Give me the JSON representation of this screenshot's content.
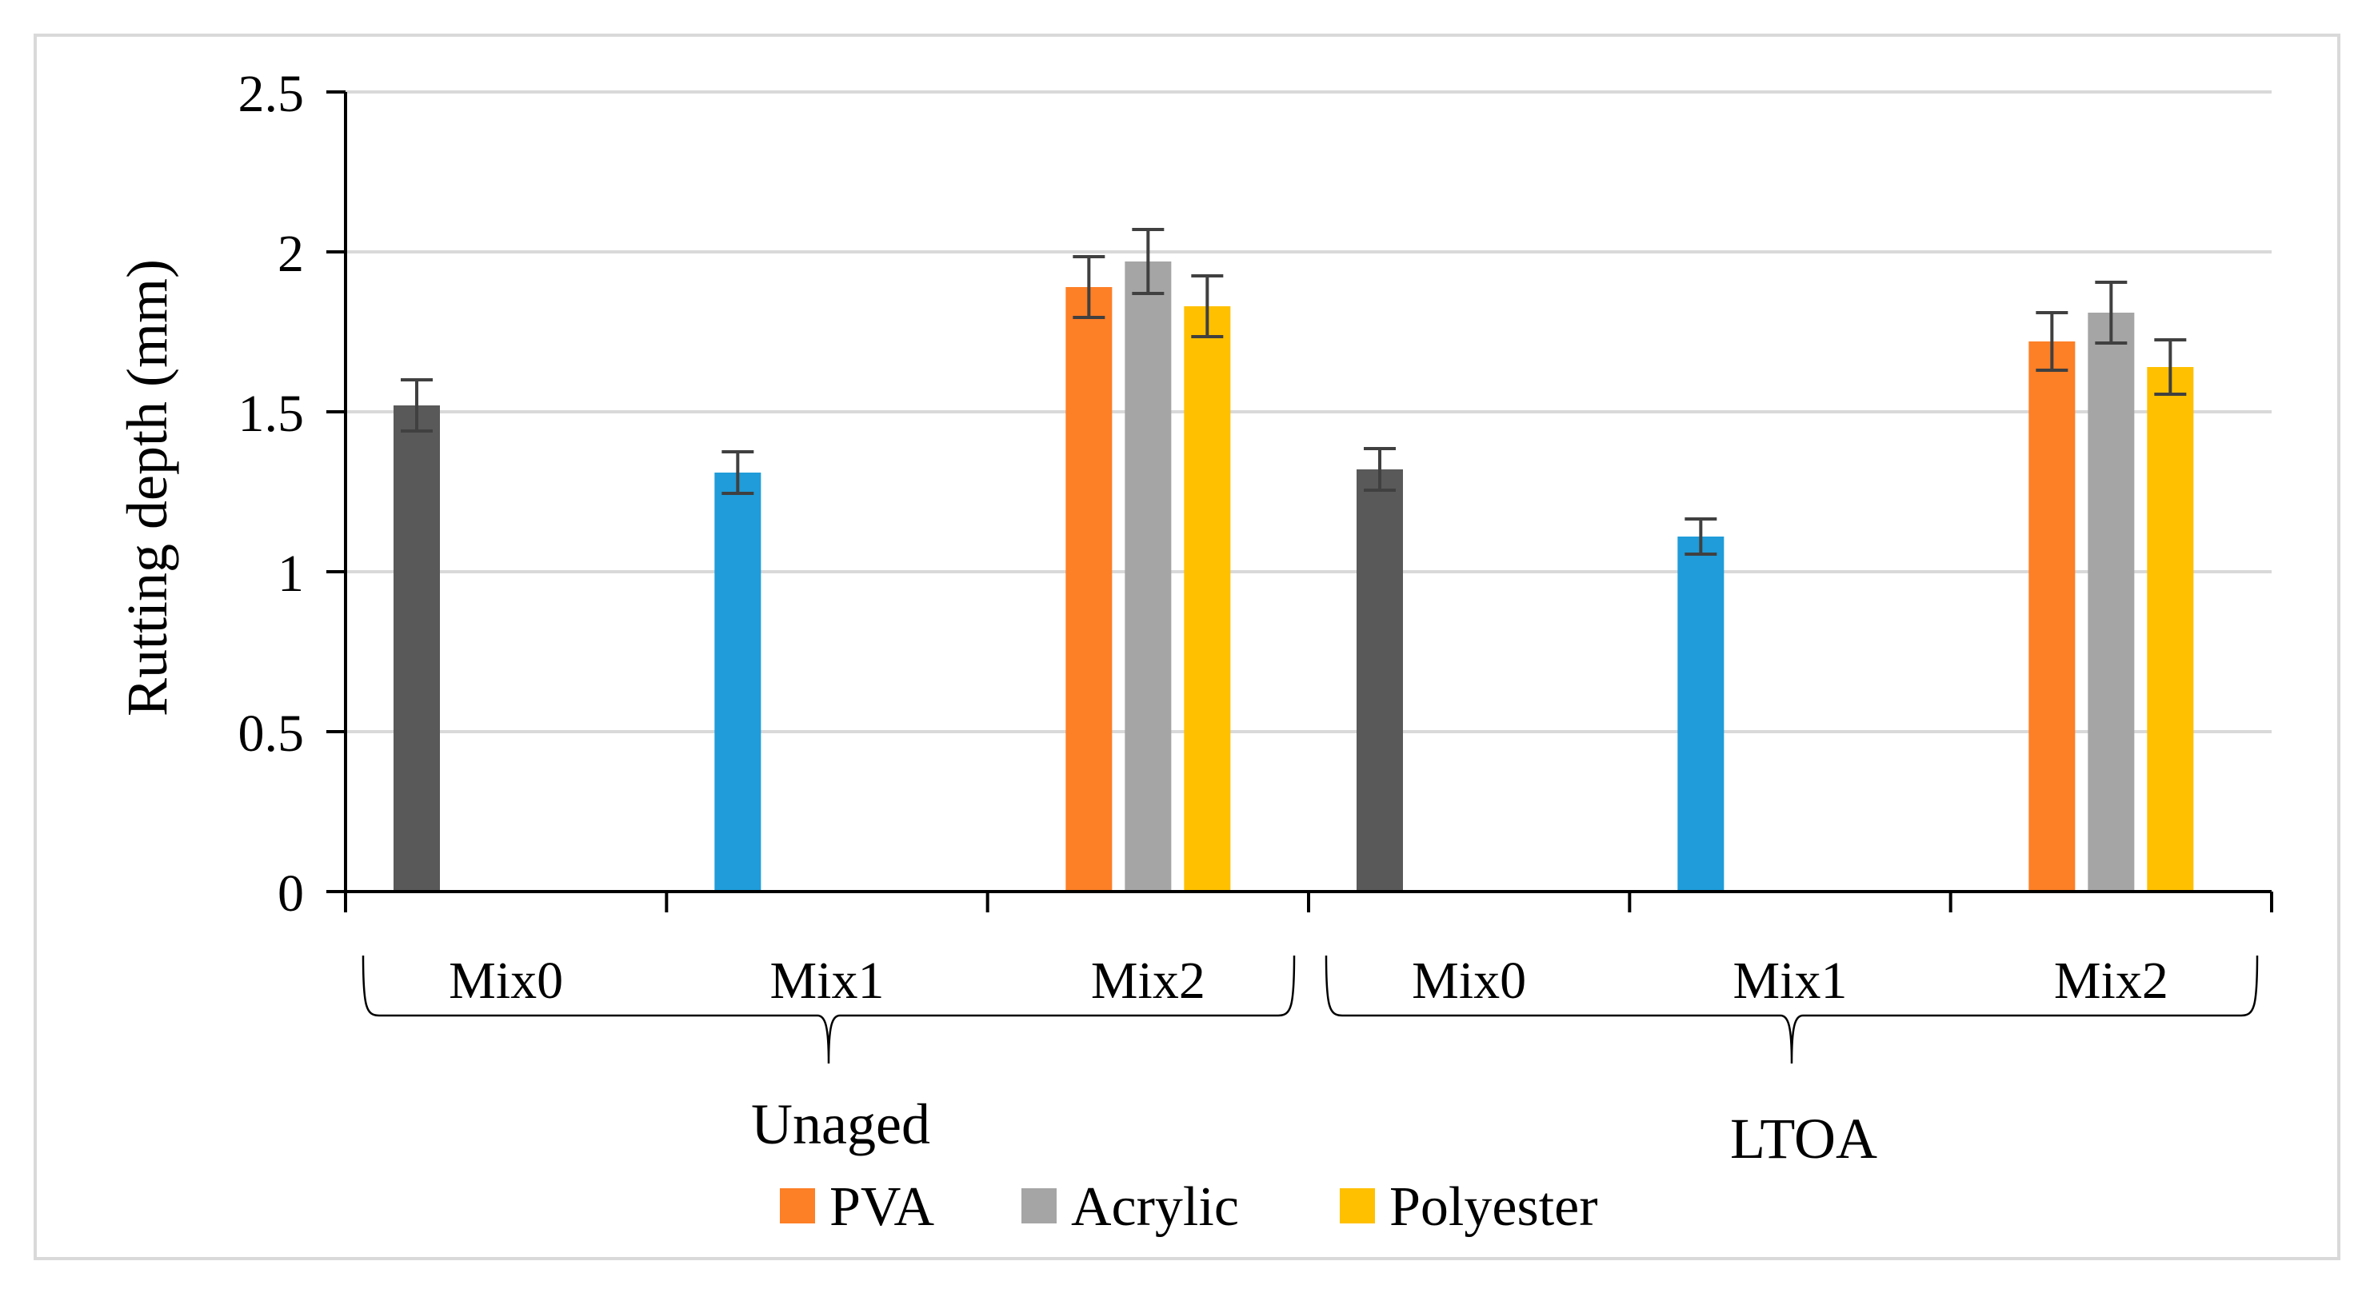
{
  "chart_data": {
    "type": "bar",
    "title": "",
    "ylabel": "Rutting depth (mm)",
    "xlabel": "",
    "ylim": [
      0,
      2.5
    ],
    "yticks": [
      "0",
      "0.5",
      "1",
      "1.5",
      "2",
      "2.5"
    ],
    "ytick_values": [
      0,
      0.5,
      1,
      1.5,
      2,
      2.5
    ],
    "grid": true,
    "legend_position": "bottom",
    "groups": [
      {
        "label": "Unaged",
        "categories": [
          {
            "label": "Mix0",
            "bars": [
              {
                "series": "Mix0",
                "value": 1.52,
                "error": 0.08
              }
            ]
          },
          {
            "label": "Mix1",
            "bars": [
              {
                "series": "Mix1",
                "value": 1.31,
                "error": 0.065
              }
            ]
          },
          {
            "label": "Mix2",
            "bars": [
              {
                "series": "PVA",
                "value": 1.89,
                "error": 0.095
              },
              {
                "series": "Acrylic",
                "value": 1.97,
                "error": 0.1
              },
              {
                "series": "Polyester",
                "value": 1.83,
                "error": 0.095
              }
            ]
          }
        ]
      },
      {
        "label": "LTOA",
        "categories": [
          {
            "label": "Mix0",
            "bars": [
              {
                "series": "Mix0",
                "value": 1.32,
                "error": 0.065
              }
            ]
          },
          {
            "label": "Mix1",
            "bars": [
              {
                "series": "Mix1",
                "value": 1.11,
                "error": 0.055
              }
            ]
          },
          {
            "label": "Mix2",
            "bars": [
              {
                "series": "PVA",
                "value": 1.72,
                "error": 0.09
              },
              {
                "series": "Acrylic",
                "value": 1.81,
                "error": 0.095
              },
              {
                "series": "Polyester",
                "value": 1.64,
                "error": 0.085
              }
            ]
          }
        ]
      }
    ],
    "colors": {
      "Mix0": "#595959",
      "Mix1": "#1f9cd9",
      "PVA": "#fd7f26",
      "Acrylic": "#a5a5a5",
      "Polyester": "#ffc000"
    },
    "legend": [
      {
        "label": "PVA",
        "color": "#fd7f26"
      },
      {
        "label": "Acrylic",
        "color": "#a5a5a5"
      },
      {
        "label": "Polyester",
        "color": "#ffc000"
      }
    ]
  }
}
